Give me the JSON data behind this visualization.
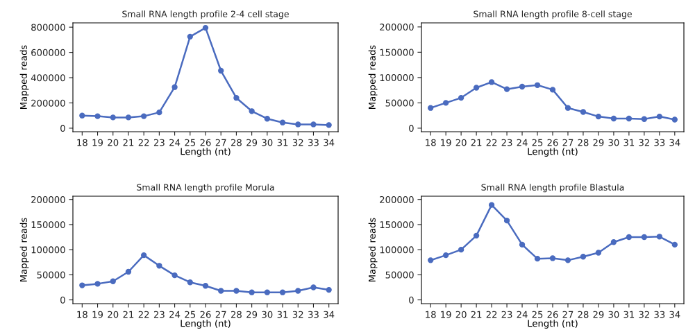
{
  "chart_data": [
    {
      "type": "line",
      "title": "Small RNA length profile 2-4 cell stage",
      "xlabel": "Length (nt)",
      "ylabel": "Mapped reads",
      "x": [
        18,
        19,
        20,
        21,
        22,
        23,
        24,
        25,
        26,
        27,
        28,
        29,
        30,
        31,
        32,
        33,
        34
      ],
      "xlim": [
        17.4,
        34.6
      ],
      "xticks": [
        18,
        19,
        20,
        21,
        22,
        23,
        24,
        25,
        26,
        27,
        28,
        29,
        30,
        31,
        32,
        33,
        34
      ],
      "ylim": [
        -28000,
        834000
      ],
      "yticks": [
        0,
        200000,
        400000,
        600000,
        800000
      ],
      "grid": false,
      "marker": "circle",
      "line_style": "solid",
      "series": [
        {
          "color": "#4a6bbf",
          "values": [
            100000,
            95000,
            85000,
            85000,
            95000,
            125000,
            325000,
            725000,
            795000,
            455000,
            240000,
            135000,
            75000,
            45000,
            30000,
            30000,
            25000
          ]
        }
      ]
    },
    {
      "type": "line",
      "title": "Small RNA length profile 8-cell stage",
      "xlabel": "Length (nt)",
      "ylabel": "Mapped reads",
      "x": [
        18,
        19,
        20,
        21,
        22,
        23,
        24,
        25,
        26,
        27,
        28,
        29,
        30,
        31,
        32,
        33,
        34
      ],
      "xlim": [
        17.4,
        34.6
      ],
      "xticks": [
        18,
        19,
        20,
        21,
        22,
        23,
        24,
        25,
        26,
        27,
        28,
        29,
        30,
        31,
        32,
        33,
        34
      ],
      "ylim": [
        -7000,
        208000
      ],
      "yticks": [
        0,
        50000,
        100000,
        150000,
        200000
      ],
      "grid": false,
      "marker": "circle",
      "line_style": "solid",
      "series": [
        {
          "color": "#4a6bbf",
          "values": [
            40000,
            50000,
            60000,
            80000,
            91000,
            77000,
            82000,
            85000,
            76000,
            40000,
            32000,
            23000,
            19000,
            19000,
            18000,
            23000,
            17000
          ]
        }
      ]
    },
    {
      "type": "line",
      "title": "Small RNA length profile Morula",
      "xlabel": "Length (nt)",
      "ylabel": "Mapped reads",
      "x": [
        18,
        19,
        20,
        21,
        22,
        23,
        24,
        25,
        26,
        27,
        28,
        29,
        30,
        31,
        32,
        33,
        34
      ],
      "xlim": [
        17.4,
        34.6
      ],
      "xticks": [
        18,
        19,
        20,
        21,
        22,
        23,
        24,
        25,
        26,
        27,
        28,
        29,
        30,
        31,
        32,
        33,
        34
      ],
      "ylim": [
        -7500,
        206500
      ],
      "yticks": [
        0,
        50000,
        100000,
        150000,
        200000
      ],
      "grid": false,
      "marker": "circle",
      "line_style": "solid",
      "series": [
        {
          "color": "#4a6bbf",
          "values": [
            29000,
            32000,
            37000,
            56000,
            89000,
            68000,
            49000,
            35000,
            28000,
            18000,
            18000,
            15000,
            15000,
            15000,
            18000,
            25000,
            20000
          ]
        }
      ]
    },
    {
      "type": "line",
      "title": "Small RNA length profile Blastula",
      "xlabel": "Length (nt)",
      "ylabel": "Mapped reads",
      "x": [
        18,
        19,
        20,
        21,
        22,
        23,
        24,
        25,
        26,
        27,
        28,
        29,
        30,
        31,
        32,
        33,
        34
      ],
      "xlim": [
        17.4,
        34.6
      ],
      "xticks": [
        18,
        19,
        20,
        21,
        22,
        23,
        24,
        25,
        26,
        27,
        28,
        29,
        30,
        31,
        32,
        33,
        34
      ],
      "ylim": [
        -7500,
        206500
      ],
      "yticks": [
        0,
        50000,
        100000,
        150000,
        200000
      ],
      "grid": false,
      "marker": "circle",
      "line_style": "solid",
      "series": [
        {
          "color": "#4a6bbf",
          "values": [
            79000,
            89000,
            100000,
            128000,
            189000,
            158000,
            110000,
            82000,
            83000,
            79000,
            86000,
            94000,
            115000,
            125000,
            125000,
            126000,
            110000
          ]
        }
      ]
    }
  ]
}
